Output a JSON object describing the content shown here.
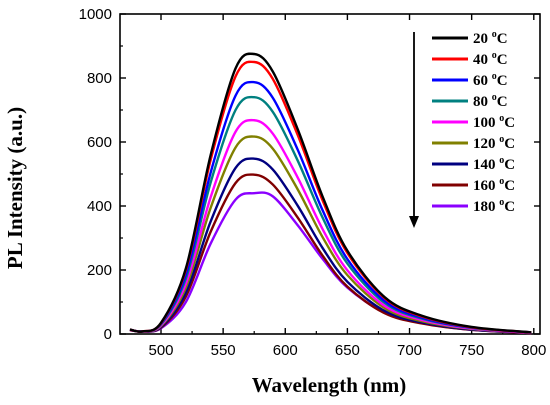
{
  "chart_data": {
    "type": "line",
    "xlabel": "Wavelength (nm)",
    "ylabel": "PL Intensity (a.u.)",
    "xlim": [
      467,
      805
    ],
    "ylim": [
      0,
      1000
    ],
    "x_ticks": [
      "500",
      "550",
      "600",
      "650",
      "700",
      "750",
      "800"
    ],
    "y_ticks": [
      "0",
      "200",
      "400",
      "600",
      "800",
      "1000"
    ],
    "x_tick_values": [
      500,
      550,
      600,
      650,
      700,
      750,
      800
    ],
    "y_tick_values": [
      0,
      200,
      400,
      600,
      800,
      1000
    ],
    "grid": false,
    "legend_position": "top-right",
    "legend_arrow": "down",
    "x": [
      475,
      485,
      500,
      520,
      540,
      560,
      575,
      590,
      610,
      630,
      650,
      680,
      710,
      750,
      798
    ],
    "series": [
      {
        "name": "20 oC",
        "label_number": "20",
        "label_sup": "o",
        "label_unit": "C",
        "color": "#000000",
        "values": [
          14,
          8,
          35,
          205,
          560,
          830,
          875,
          820,
          640,
          430,
          260,
          115,
          57,
          22,
          5
        ]
      },
      {
        "name": "40 oC",
        "label_number": "40",
        "label_sup": "o",
        "label_unit": "C",
        "color": "#ff0000",
        "values": [
          14,
          8,
          34,
          200,
          545,
          805,
          850,
          797,
          622,
          418,
          253,
          112,
          55,
          21,
          5
        ]
      },
      {
        "name": "60 oC",
        "label_number": "60",
        "label_sup": "o",
        "label_unit": "C",
        "color": "#0000ff",
        "values": [
          14,
          8,
          32,
          185,
          505,
          745,
          787,
          738,
          576,
          387,
          234,
          103,
          51,
          20,
          5
        ]
      },
      {
        "name": "80 oC",
        "label_number": "80",
        "label_sup": "o",
        "label_unit": "C",
        "color": "#008080",
        "values": [
          14,
          8,
          30,
          173,
          474,
          700,
          740,
          694,
          542,
          364,
          220,
          97,
          48,
          19,
          5
        ]
      },
      {
        "name": "100 oC",
        "label_number": "100",
        "label_sup": "o",
        "label_unit": "C",
        "color": "#ff00ff",
        "values": [
          13,
          8,
          27,
          157,
          428,
          632,
          668,
          626,
          489,
          328,
          199,
          88,
          44,
          17,
          4
        ]
      },
      {
        "name": "120 oC",
        "label_number": "120",
        "label_sup": "o",
        "label_unit": "C",
        "color": "#808000",
        "values": [
          13,
          8,
          25,
          145,
          395,
          583,
          617,
          579,
          452,
          303,
          184,
          81,
          40,
          16,
          4
        ]
      },
      {
        "name": "140 oC",
        "label_number": "140",
        "label_sup": "o",
        "label_unit": "C",
        "color": "#000080",
        "values": [
          13,
          8,
          22,
          129,
          352,
          519,
          548,
          514,
          401,
          269,
          163,
          72,
          36,
          14,
          4
        ]
      },
      {
        "name": "160 oC",
        "label_number": "160",
        "label_sup": "o",
        "label_unit": "C",
        "color": "#800000",
        "values": [
          12,
          8,
          20,
          117,
          320,
          472,
          498,
          467,
          364,
          245,
          148,
          65,
          33,
          13,
          3
        ]
      },
      {
        "name": "180 oC",
        "label_number": "180",
        "label_sup": "o",
        "label_unit": "C",
        "color": "#8b00ff",
        "values": [
          12,
          8,
          18,
          100,
          283,
          420,
          440,
          430,
          340,
          235,
          145,
          66,
          34,
          13,
          3
        ]
      }
    ]
  }
}
